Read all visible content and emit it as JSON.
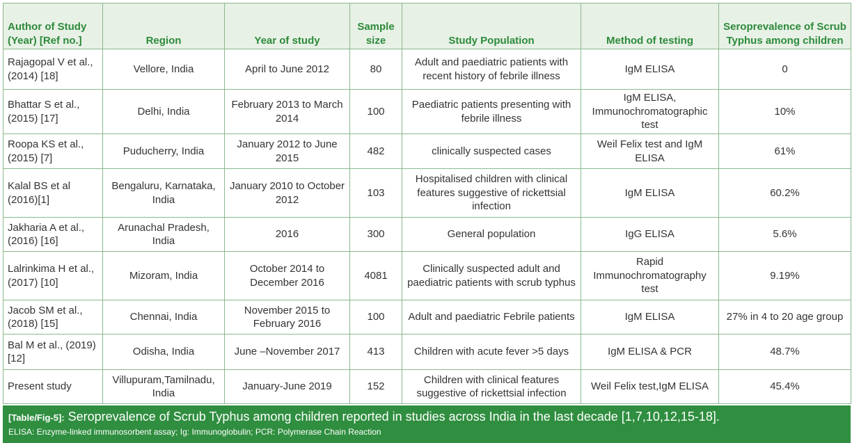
{
  "table": {
    "headers": [
      "Author of Study (Year) [Ref no.]",
      "Region",
      "Year of study",
      "Sample size",
      "Study Population",
      "Method of testing",
      "Seroprevalence of Scrub Typhus among children"
    ],
    "rows": [
      [
        "Rajagopal V et al., (2014) [18]",
        "Vellore, India",
        "April to June 2012",
        "80",
        "Adult and paediatric patients with recent history of febrile illness",
        "IgM ELISA",
        "0"
      ],
      [
        "Bhattar S et al., (2015) [17]",
        "Delhi, India",
        "February 2013 to March 2014",
        "100",
        "Paediatric patients presenting with febrile illness",
        "IgM ELISA, Immunochromatographic test",
        "10%"
      ],
      [
        "Roopa KS et al., (2015) [7]",
        "Puducherry, India",
        "January 2012 to June 2015",
        "482",
        "clinically suspected cases",
        "Weil Felix test and IgM ELISA",
        "61%"
      ],
      [
        "Kalal BS et al (2016)[1]",
        "Bengaluru, Karnataka, India",
        "January 2010 to October 2012",
        "103",
        "Hospitalised children with clinical features suggestive of rickettsial infection",
        "IgM ELISA",
        "60.2%"
      ],
      [
        "Jakharia A et al., (2016) [16]",
        "Arunachal Pradesh, India",
        "2016",
        "300",
        "General population",
        "IgG ELISA",
        "5.6%"
      ],
      [
        "Lalrinkima H et al., (2017) [10]",
        "Mizoram, India",
        "October 2014 to December 2016",
        "4081",
        "Clinically suspected adult and paediatric patients with scrub typhus",
        "Rapid Immunochromatography test",
        "9.19%"
      ],
      [
        "Jacob SM et al., (2018) [15]",
        "Chennai, India",
        "November 2015 to February 2016",
        "100",
        "Adult and paediatric Febrile patients",
        "IgM ELISA",
        "27% in 4 to 20 age group"
      ],
      [
        "Bal M et al., (2019) [12]",
        "Odisha, India",
        "June –November 2017",
        "413",
        "Children with acute fever >5 days",
        "IgM ELISA & PCR",
        "48.7%"
      ],
      [
        "Present study",
        "Villupuram,Tamilnadu, India",
        "January-June 2019",
        "152",
        "Children with clinical features suggestive of rickettsial infection",
        "Weil Felix test,IgM ELISA",
        "45.4%"
      ]
    ]
  },
  "caption": {
    "tag": "[Table/Fig-5]:",
    "text": " Seroprevalence of Scrub Typhus among children reported in studies across India in the last decade [1,7,10,12,15-18].",
    "abbreviations": "ELISA: Enzyme-linked immunosorbent assay; Ig: Immunoglobulin; PCR: Polymerase Chain Reaction"
  },
  "colors": {
    "header_text": "#2c8a3a",
    "header_bg": "#e8f1e6",
    "border": "#8ab88c",
    "caption_bg": "#2f8e3f"
  }
}
